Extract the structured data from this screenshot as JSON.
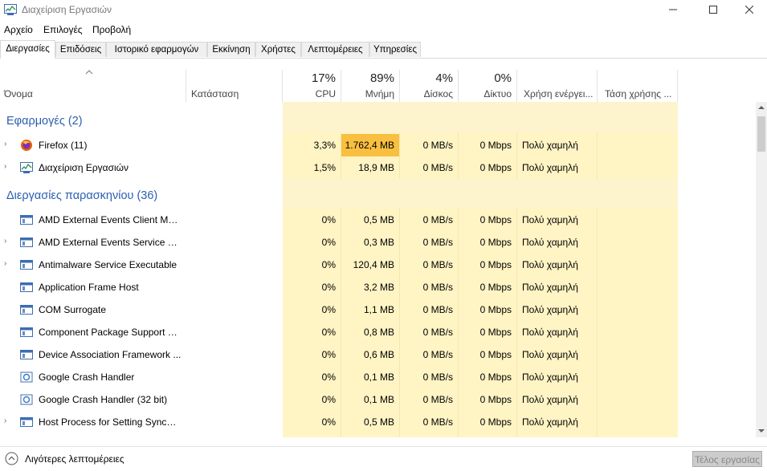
{
  "window": {
    "title": "Διαχείριση Εργασιών"
  },
  "menu": [
    "Αρχείο",
    "Επιλογές",
    "Προβολή"
  ],
  "tabs": [
    "Διεργασίες",
    "Επιδόσεις",
    "Ιστορικό εφαρμογών",
    "Εκκίνηση",
    "Χρήστες",
    "Λεπτομέρειες",
    "Υπηρεσίες"
  ],
  "active_tab": "Διεργασίες",
  "columns": {
    "name": "Όνομα",
    "status": "Κατάσταση",
    "cpu": {
      "pct": "17%",
      "label": "CPU"
    },
    "memory": {
      "pct": "89%",
      "label": "Μνήμη"
    },
    "disk": {
      "pct": "4%",
      "label": "Δίσκος"
    },
    "network": {
      "pct": "0%",
      "label": "Δίκτυο"
    },
    "power": "Χρήση ενέργει...",
    "power_trend": "Τάση χρήσης ..."
  },
  "groups": {
    "apps": "Εφαρμογές (2)",
    "background": "Διεργασίες παρασκηνίου (36)"
  },
  "apps": [
    {
      "name": "Firefox (11)",
      "cpu": "3,3%",
      "mem": "1.762,4 MB",
      "disk": "0 MB/s",
      "net": "0 Mbps",
      "power": "Πολύ χαμηλή",
      "icon": "firefox-icon"
    },
    {
      "name": "Διαχείριση Εργασιών",
      "cpu": "1,5%",
      "mem": "18,9 MB",
      "disk": "0 MB/s",
      "net": "0 Mbps",
      "power": "Πολύ χαμηλή",
      "icon": "task-manager-icon"
    }
  ],
  "background": [
    {
      "name": "AMD External Events Client Mo...",
      "cpu": "0%",
      "mem": "0,5 MB",
      "disk": "0 MB/s",
      "net": "0 Mbps",
      "power": "Πολύ χαμηλή"
    },
    {
      "name": "AMD External Events Service M...",
      "cpu": "0%",
      "mem": "0,3 MB",
      "disk": "0 MB/s",
      "net": "0 Mbps",
      "power": "Πολύ χαμηλή"
    },
    {
      "name": "Antimalware Service Executable",
      "cpu": "0%",
      "mem": "120,4 MB",
      "disk": "0 MB/s",
      "net": "0 Mbps",
      "power": "Πολύ χαμηλή"
    },
    {
      "name": "Application Frame Host",
      "cpu": "0%",
      "mem": "3,2 MB",
      "disk": "0 MB/s",
      "net": "0 Mbps",
      "power": "Πολύ χαμηλή"
    },
    {
      "name": "COM Surrogate",
      "cpu": "0%",
      "mem": "1,1 MB",
      "disk": "0 MB/s",
      "net": "0 Mbps",
      "power": "Πολύ χαμηλή"
    },
    {
      "name": "Component Package Support S...",
      "cpu": "0%",
      "mem": "0,8 MB",
      "disk": "0 MB/s",
      "net": "0 Mbps",
      "power": "Πολύ χαμηλή"
    },
    {
      "name": "Device Association Framework ...",
      "cpu": "0%",
      "mem": "0,6 MB",
      "disk": "0 MB/s",
      "net": "0 Mbps",
      "power": "Πολύ χαμηλή"
    },
    {
      "name": "Google Crash Handler",
      "cpu": "0%",
      "mem": "0,1 MB",
      "disk": "0 MB/s",
      "net": "0 Mbps",
      "power": "Πολύ χαμηλή"
    },
    {
      "name": "Google Crash Handler (32 bit)",
      "cpu": "0%",
      "mem": "0,1 MB",
      "disk": "0 MB/s",
      "net": "0 Mbps",
      "power": "Πολύ χαμηλή"
    },
    {
      "name": "Host Process for Setting Synchr...",
      "cpu": "0%",
      "mem": "0,5 MB",
      "disk": "0 MB/s",
      "net": "0 Mbps",
      "power": "Πολύ χαμηλή"
    }
  ],
  "footer": {
    "fewer_details": "Λιγότερες λεπτομέρειες",
    "end_task": "Τέλος εργασίας"
  },
  "colors": {
    "heat_light": "#fff4c4",
    "heat_header": "#fdf3cd",
    "heat_strong": "#f9bf40",
    "group_text": "#2a5fb0"
  }
}
